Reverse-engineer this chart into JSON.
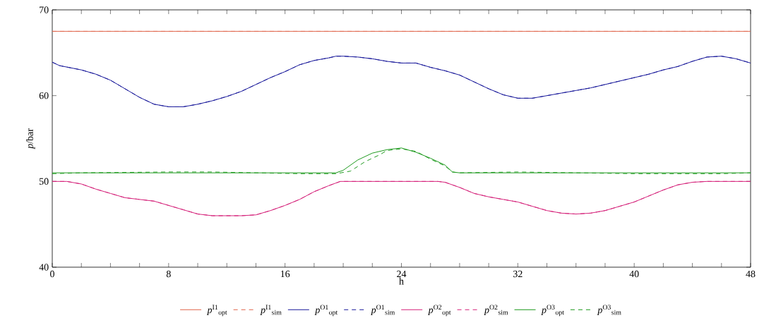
{
  "chart_data": {
    "type": "line",
    "xlabel": "h",
    "ylabel": "*p*/bar",
    "xlim": [
      0,
      48
    ],
    "ylim": [
      40,
      70
    ],
    "xticks": [
      0,
      {
        "value": 2,
        "label": null
      },
      {
        "value": 4,
        "label": null
      },
      {
        "value": 6,
        "label": null
      },
      8,
      {
        "value": 10,
        "label": null
      },
      {
        "value": 12,
        "label": null
      },
      {
        "value": 14,
        "label": null
      },
      16,
      {
        "value": 18,
        "label": null
      },
      {
        "value": 20,
        "label": null
      },
      {
        "value": 22,
        "label": null
      },
      24,
      {
        "value": 26,
        "label": null
      },
      {
        "value": 28,
        "label": null
      },
      {
        "value": 30,
        "label": null
      },
      32,
      {
        "value": 34,
        "label": null
      },
      {
        "value": 36,
        "label": null
      },
      {
        "value": 38,
        "label": null
      },
      40,
      {
        "value": 42,
        "label": null
      },
      {
        "value": 44,
        "label": null
      },
      {
        "value": 46,
        "label": null
      },
      48
    ],
    "yticks": [
      40,
      50,
      60,
      70
    ],
    "legend": "bottom",
    "series": [
      {
        "name": "*p*$^{I1}$$_{opt}$",
        "color": "#e0674c",
        "line_style": "solid",
        "x": [
          0,
          48
        ],
        "values": [
          67.5,
          67.5
        ]
      },
      {
        "name": "*p*$^{I1}$$_{sim}$",
        "color": "#e0674c",
        "line_style": "dashed",
        "x": [
          0,
          48
        ],
        "values": [
          67.5,
          67.5
        ]
      },
      {
        "name": "*p*$^{O1}$$_{opt}$",
        "color": "#1c1c9c",
        "line_style": "solid",
        "x": [
          0,
          0.5,
          2,
          3,
          4,
          5,
          6,
          7,
          8,
          9,
          10,
          11,
          12,
          13,
          14,
          15,
          16,
          17,
          18,
          19,
          19.5,
          20,
          21,
          22,
          23,
          24,
          25,
          26,
          27,
          28,
          29,
          30,
          31,
          32,
          33,
          34,
          35,
          36,
          37,
          38,
          39,
          40,
          41,
          42,
          43,
          44,
          45,
          46,
          47,
          48
        ],
        "values": [
          63.9,
          63.5,
          63.0,
          62.5,
          61.8,
          60.8,
          59.8,
          59.0,
          58.7,
          58.7,
          59.0,
          59.4,
          59.9,
          60.5,
          61.3,
          62.1,
          62.8,
          63.6,
          64.1,
          64.4,
          64.6,
          64.6,
          64.5,
          64.3,
          64.0,
          63.8,
          63.8,
          63.3,
          62.9,
          62.4,
          61.6,
          60.8,
          60.1,
          59.7,
          59.7,
          60.0,
          60.3,
          60.6,
          60.9,
          61.3,
          61.7,
          62.1,
          62.5,
          63.0,
          63.4,
          64.0,
          64.5,
          64.6,
          64.3,
          63.8
        ]
      },
      {
        "name": "*p*$^{O1}$$_{sim}$",
        "color": "#1c1c9c",
        "line_style": "dashed",
        "x": [
          0,
          0.5,
          2,
          3,
          4,
          5,
          6,
          7,
          8,
          9,
          10,
          11,
          12,
          13,
          14,
          15,
          16,
          17,
          18,
          19,
          19.5,
          20,
          21,
          22,
          23,
          24,
          25,
          26,
          27,
          28,
          29,
          30,
          31,
          32,
          33,
          34,
          35,
          36,
          37,
          38,
          39,
          40,
          41,
          42,
          43,
          44,
          45,
          46,
          47,
          48
        ],
        "values": [
          63.9,
          63.5,
          63.0,
          62.5,
          61.8,
          60.8,
          59.8,
          59.0,
          58.7,
          58.7,
          59.0,
          59.4,
          59.9,
          60.5,
          61.3,
          62.1,
          62.8,
          63.6,
          64.1,
          64.4,
          64.6,
          64.6,
          64.5,
          64.3,
          64.0,
          63.8,
          63.8,
          63.3,
          62.9,
          62.4,
          61.6,
          60.8,
          60.1,
          59.7,
          59.7,
          60.0,
          60.3,
          60.6,
          60.9,
          61.3,
          61.7,
          62.1,
          62.5,
          63.0,
          63.4,
          64.0,
          64.5,
          64.6,
          64.3,
          63.8
        ]
      },
      {
        "name": "*p*$^{O2}$$_{opt}$",
        "color": "#d6257c",
        "line_style": "solid",
        "x": [
          0,
          1,
          2,
          3,
          4,
          5,
          6,
          7,
          8,
          9,
          10,
          11,
          12,
          13,
          14,
          15,
          16,
          17,
          18,
          19,
          19.8,
          26,
          26.5,
          27,
          28,
          29,
          30,
          31,
          32,
          33,
          34,
          35,
          36,
          37,
          38,
          39,
          40,
          41,
          42,
          43,
          44,
          45,
          48
        ],
        "values": [
          50.0,
          50.0,
          49.7,
          49.1,
          48.6,
          48.1,
          47.9,
          47.7,
          47.2,
          46.7,
          46.2,
          46.0,
          46.0,
          46.0,
          46.1,
          46.6,
          47.2,
          47.9,
          48.8,
          49.5,
          50.0,
          50.0,
          50.0,
          49.9,
          49.3,
          48.6,
          48.2,
          47.9,
          47.6,
          47.1,
          46.6,
          46.3,
          46.2,
          46.3,
          46.6,
          47.1,
          47.6,
          48.3,
          49.0,
          49.6,
          49.9,
          50.0,
          50.0
        ]
      },
      {
        "name": "*p*$^{O2}$$_{sim}$",
        "color": "#d6257c",
        "line_style": "dashed",
        "x": [
          0,
          1,
          2,
          3,
          4,
          5,
          6,
          7,
          8,
          9,
          10,
          11,
          12,
          13,
          14,
          15,
          16,
          17,
          18,
          19,
          19.8,
          26,
          26.5,
          27,
          28,
          29,
          30,
          31,
          32,
          33,
          34,
          35,
          36,
          37,
          38,
          39,
          40,
          41,
          42,
          43,
          44,
          45,
          48
        ],
        "values": [
          50.0,
          50.0,
          49.7,
          49.1,
          48.6,
          48.1,
          47.9,
          47.7,
          47.2,
          46.7,
          46.2,
          46.0,
          46.0,
          46.0,
          46.1,
          46.6,
          47.2,
          47.9,
          48.8,
          49.5,
          50.0,
          50.0,
          50.0,
          49.9,
          49.3,
          48.6,
          48.2,
          47.9,
          47.6,
          47.1,
          46.6,
          46.3,
          46.2,
          46.3,
          46.6,
          47.1,
          47.6,
          48.3,
          49.0,
          49.6,
          49.9,
          50.0,
          50.0
        ]
      },
      {
        "name": "*p*$^{O3}$$_{opt}$",
        "color": "#1e9a1e",
        "line_style": "solid",
        "x": [
          0,
          19.5,
          20,
          21,
          22,
          23,
          24,
          25,
          26,
          27,
          27.5,
          28,
          48
        ],
        "values": [
          51.0,
          51.0,
          51.3,
          52.5,
          53.3,
          53.7,
          53.9,
          53.4,
          52.7,
          51.9,
          51.1,
          51.0,
          51.0
        ]
      },
      {
        "name": "*p*$^{O3}$$_{sim}$",
        "color": "#1e9a1e",
        "line_style": "dashed",
        "x": [
          0,
          2,
          8,
          11,
          17,
          19.5,
          20.5,
          21.5,
          22.5,
          23,
          24,
          25,
          26,
          27,
          27.5,
          28,
          32,
          40,
          46,
          48
        ],
        "values": [
          50.9,
          51.0,
          51.1,
          51.1,
          50.9,
          50.9,
          51.2,
          52.3,
          53.1,
          53.6,
          53.8,
          53.5,
          52.6,
          51.8,
          51.1,
          51.0,
          51.1,
          50.9,
          50.9,
          51.0
        ]
      }
    ]
  }
}
